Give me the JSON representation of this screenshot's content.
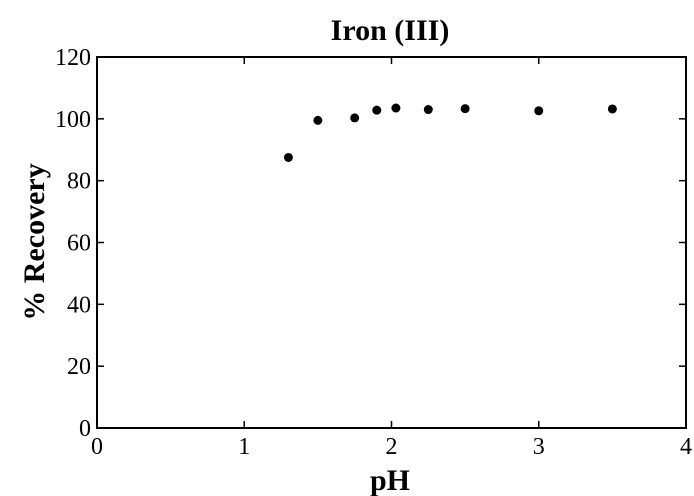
{
  "chart_data": {
    "type": "scatter",
    "title": "Iron (III)",
    "xlabel": "pH",
    "ylabel": "% Recovery",
    "xlim": [
      0,
      4
    ],
    "ylim": [
      0,
      120
    ],
    "x_ticks": [
      "0",
      "1",
      "2",
      "3",
      "4"
    ],
    "y_ticks": [
      "0",
      "20",
      "40",
      "60",
      "80",
      "100",
      "120"
    ],
    "grid": false,
    "legend": "none",
    "marker_color": "#000000",
    "series": [
      {
        "x": [
          1.3,
          1.5,
          1.75,
          1.9,
          2.03,
          2.25,
          2.5,
          3.0,
          3.5
        ],
        "y": [
          87.5,
          99.5,
          100.3,
          102.8,
          103.5,
          103.0,
          103.3,
          102.6,
          103.2
        ]
      }
    ]
  }
}
